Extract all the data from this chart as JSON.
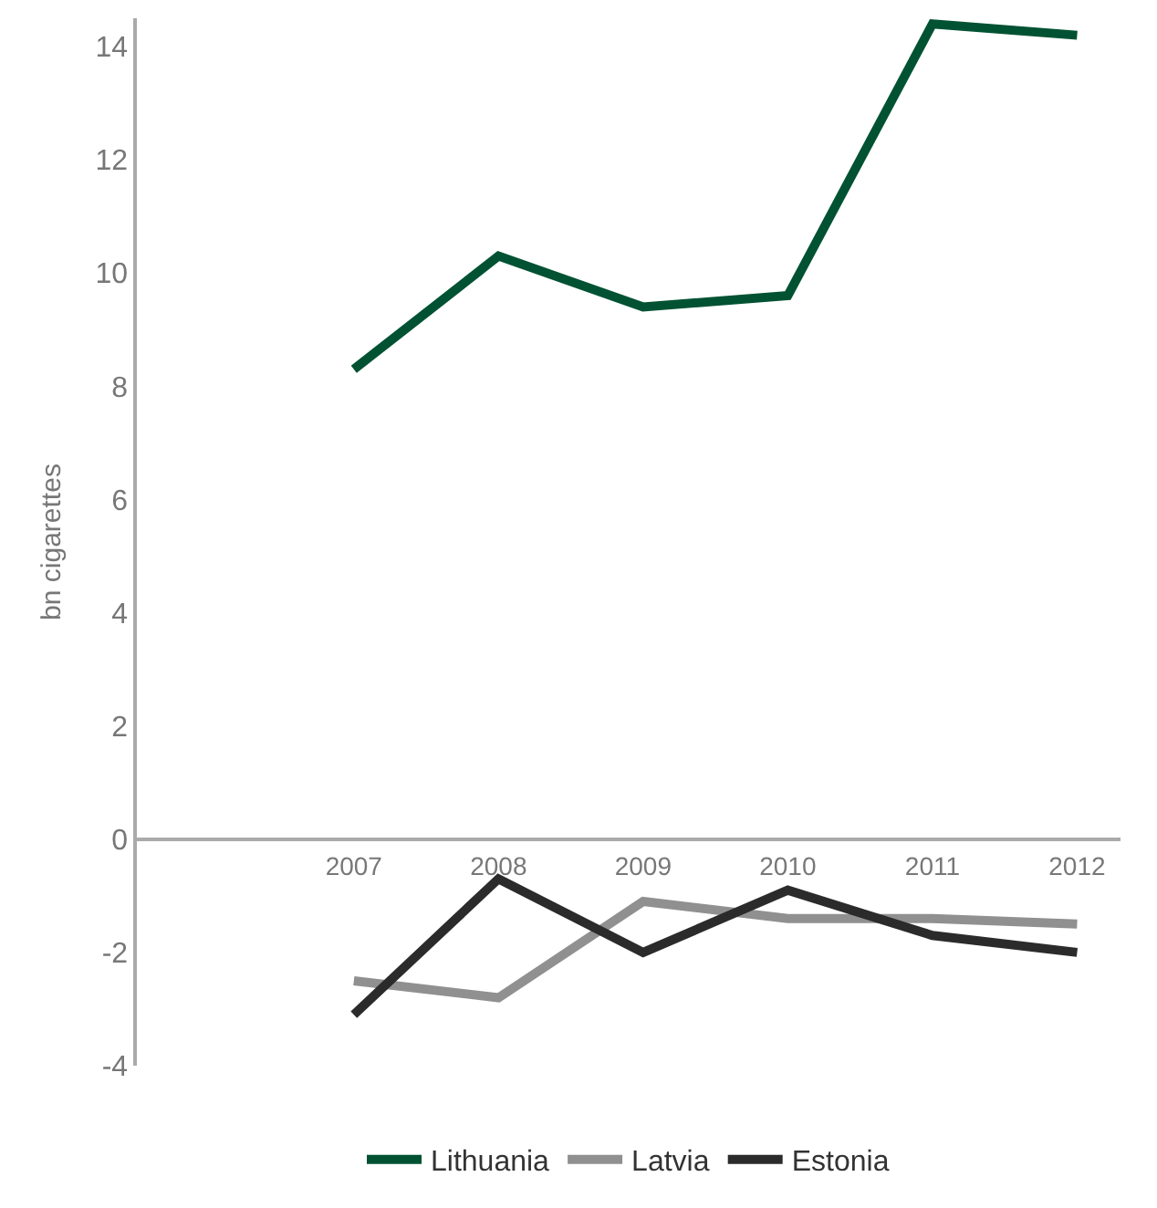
{
  "chart_data": {
    "type": "line",
    "ylabel": "bn cigarettes",
    "categories": [
      "2007",
      "2008",
      "2009",
      "2010",
      "2011",
      "2012"
    ],
    "series": [
      {
        "name": "Lithuania",
        "color": "#005233",
        "values": [
          8.3,
          10.3,
          9.4,
          9.6,
          14.4,
          14.2
        ]
      },
      {
        "name": "Latvia",
        "color": "#909090",
        "values": [
          -2.5,
          -2.8,
          -1.1,
          -1.4,
          -1.4,
          -1.5
        ]
      },
      {
        "name": "Estonia",
        "color": "#2b2b2b",
        "values": [
          -3.1,
          -0.7,
          -2.0,
          -0.9,
          -1.7,
          -2.0
        ]
      }
    ],
    "ylim": [
      -4,
      14.5
    ],
    "yticks": [
      -4,
      -2,
      0,
      2,
      4,
      6,
      8,
      10,
      12,
      14
    ],
    "legend": "bottom",
    "marker": "none",
    "line_style": "solid"
  }
}
